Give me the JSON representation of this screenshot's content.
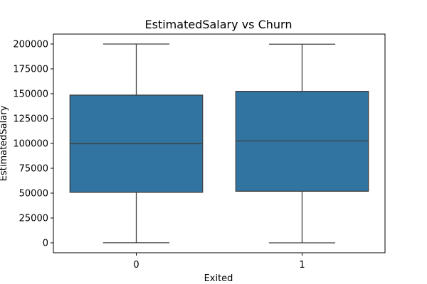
{
  "chart_data": {
    "type": "box",
    "title": "EstimatedSalary vs Churn",
    "xlabel": "Exited",
    "ylabel": "EstimatedSalary",
    "categories": [
      "0",
      "1"
    ],
    "boxes": [
      {
        "category": "0",
        "min": 90,
        "q1": 50800,
        "median": 99700,
        "q3": 148600,
        "max": 199990
      },
      {
        "category": "1",
        "min": 12,
        "q1": 51900,
        "median": 102500,
        "q3": 152400,
        "max": 199800
      }
    ],
    "ylim": [
      -10000,
      210000
    ],
    "yticks": [
      0,
      25000,
      50000,
      75000,
      100000,
      125000,
      150000,
      175000,
      200000
    ],
    "ytick_labels": [
      "0",
      "25000",
      "50000",
      "75000",
      "100000",
      "125000",
      "150000",
      "175000",
      "200000"
    ],
    "box_color": "#3274a1",
    "line_color": "#3f3f3f",
    "grid": false,
    "legend": "none"
  }
}
